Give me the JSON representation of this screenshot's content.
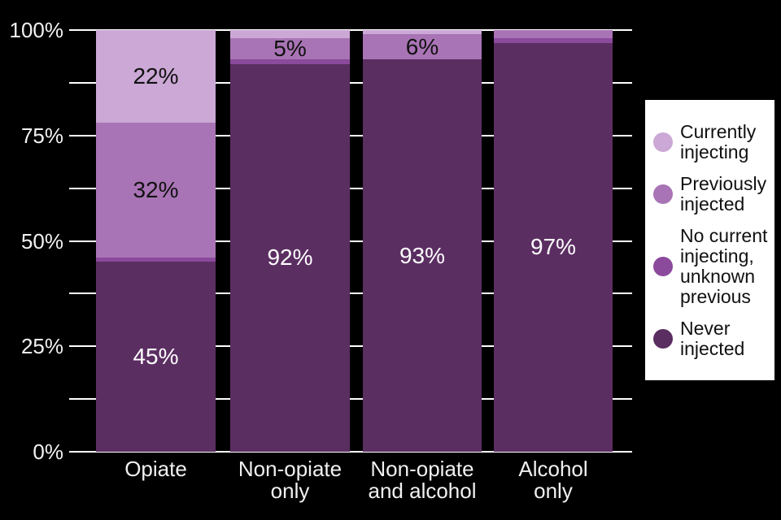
{
  "chart_data": {
    "type": "bar",
    "subtype": "stacked-percentage",
    "title": "",
    "xlabel": "",
    "ylabel": "",
    "background_color": "#000000",
    "gridline_color": "#ffffff",
    "grid_step_percent": 12.5,
    "ylim": [
      0,
      100
    ],
    "y_ticks": [
      {
        "percent": 100,
        "label": "100%"
      },
      {
        "percent": 75,
        "label": "75%"
      },
      {
        "percent": 50,
        "label": "50%"
      },
      {
        "percent": 25,
        "label": "25%"
      },
      {
        "percent": 0,
        "label": "0%"
      }
    ],
    "categories": [
      "Opiate",
      "Non-opiate\nonly",
      "Non-opiate\nand alcohol",
      "Alcohol\nonly"
    ],
    "series": [
      {
        "name": "Currently injecting",
        "legend_label": "Currently\ninjecting",
        "color": "#cba8d5",
        "label_color": "#111111",
        "values": [
          22,
          2,
          1,
          0
        ],
        "labels": [
          "22%",
          "",
          "",
          ""
        ]
      },
      {
        "name": "Previously injected",
        "legend_label": "Previously\ninjected",
        "color": "#a974b5",
        "label_color": "#111111",
        "values": [
          32,
          5,
          6,
          2
        ],
        "labels": [
          "32%",
          "5%",
          "6%",
          ""
        ]
      },
      {
        "name": "No current injecting, unknown previous",
        "legend_label": "No current\ninjecting,\nunknown\nprevious",
        "color": "#8b4a9c",
        "label_color": "#ffffff",
        "values": [
          1,
          1,
          0,
          1
        ],
        "labels": [
          "",
          "",
          "",
          ""
        ]
      },
      {
        "name": "Never injected",
        "legend_label": "Never\ninjected",
        "color": "#5b2e62",
        "label_color": "#ffffff",
        "values": [
          45,
          92,
          93,
          97
        ],
        "labels": [
          "45%",
          "92%",
          "93%",
          "97%"
        ]
      }
    ],
    "legend_position": "right",
    "legend_background": "#ffffff"
  }
}
